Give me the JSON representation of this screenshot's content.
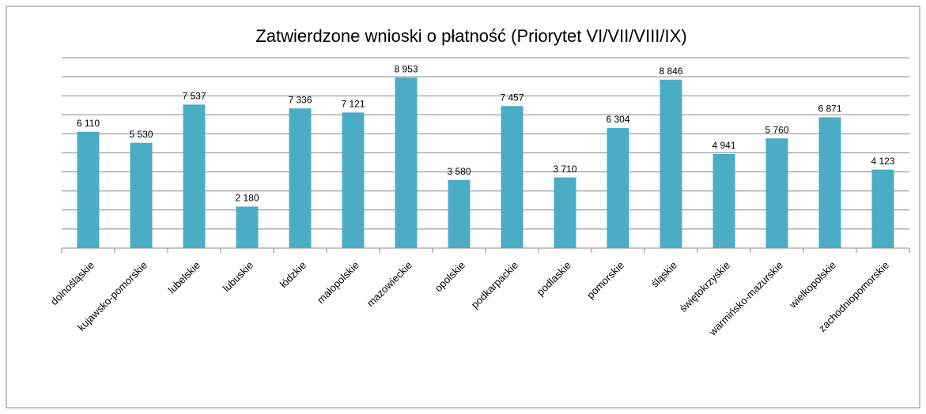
{
  "chart_data": {
    "type": "bar",
    "title": "Zatwierdzone wnioski o płatność (Priorytet VI/VII/VIII/IX)",
    "categories": [
      "dolnośląskie",
      "kujawsko-pomorskie",
      "lubelskie",
      "lubuskie",
      "łódzkie",
      "małopolskie",
      "mazowieckie",
      "opolskie",
      "podkarpackie",
      "podlaskie",
      "pomorskie",
      "śląskie",
      "świętokrzyskie",
      "warmińsko-mazurskie",
      "wielkopolskie",
      "zachodniopomorskie"
    ],
    "values": [
      6110,
      5530,
      7537,
      2180,
      7336,
      7121,
      8953,
      3580,
      7457,
      3710,
      6304,
      8846,
      4941,
      5760,
      6871,
      4123
    ],
    "value_labels": [
      "6 110",
      "5 530",
      "7 537",
      "2 180",
      "7 336",
      "7 121",
      "8 953",
      "3 580",
      "7 457",
      "3 710",
      "6 304",
      "8 846",
      "4 941",
      "5 760",
      "6 871",
      "4 123"
    ],
    "color": "#4bacc6",
    "ylim": [
      0,
      10000
    ],
    "yticks": [
      0,
      1000,
      2000,
      3000,
      4000,
      5000,
      6000,
      7000,
      8000,
      9000,
      10000
    ],
    "grid": true
  }
}
